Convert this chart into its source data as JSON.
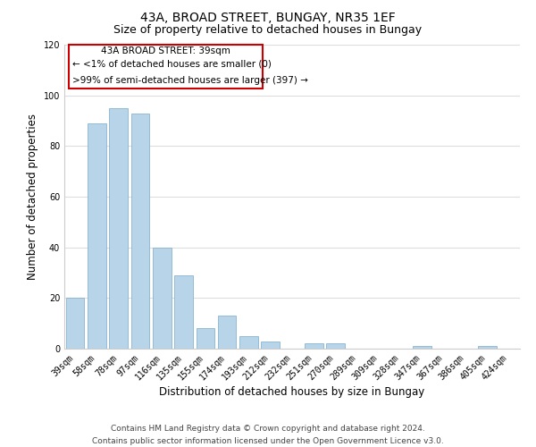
{
  "title": "43A, BROAD STREET, BUNGAY, NR35 1EF",
  "subtitle": "Size of property relative to detached houses in Bungay",
  "xlabel": "Distribution of detached houses by size in Bungay",
  "ylabel": "Number of detached properties",
  "categories": [
    "39sqm",
    "58sqm",
    "78sqm",
    "97sqm",
    "116sqm",
    "135sqm",
    "155sqm",
    "174sqm",
    "193sqm",
    "212sqm",
    "232sqm",
    "251sqm",
    "270sqm",
    "289sqm",
    "309sqm",
    "328sqm",
    "347sqm",
    "367sqm",
    "386sqm",
    "405sqm",
    "424sqm"
  ],
  "values": [
    20,
    89,
    95,
    93,
    40,
    29,
    8,
    13,
    5,
    3,
    0,
    2,
    2,
    0,
    0,
    0,
    1,
    0,
    0,
    1,
    0
  ],
  "bar_color": "#b8d4e8",
  "bar_edge_color": "#7aaaca",
  "ylim": [
    0,
    120
  ],
  "yticks": [
    0,
    20,
    40,
    60,
    80,
    100,
    120
  ],
  "annotation_title": "43A BROAD STREET: 39sqm",
  "annotation_line1": "← <1% of detached houses are smaller (0)",
  "annotation_line2": ">99% of semi-detached houses are larger (397) →",
  "footer_line1": "Contains HM Land Registry data © Crown copyright and database right 2024.",
  "footer_line2": "Contains public sector information licensed under the Open Government Licence v3.0.",
  "background_color": "#ffffff",
  "grid_color": "#dddddd",
  "title_fontsize": 10,
  "subtitle_fontsize": 9,
  "axis_label_fontsize": 8.5,
  "tick_fontsize": 7,
  "annotation_fontsize": 7.5,
  "footer_fontsize": 6.5
}
